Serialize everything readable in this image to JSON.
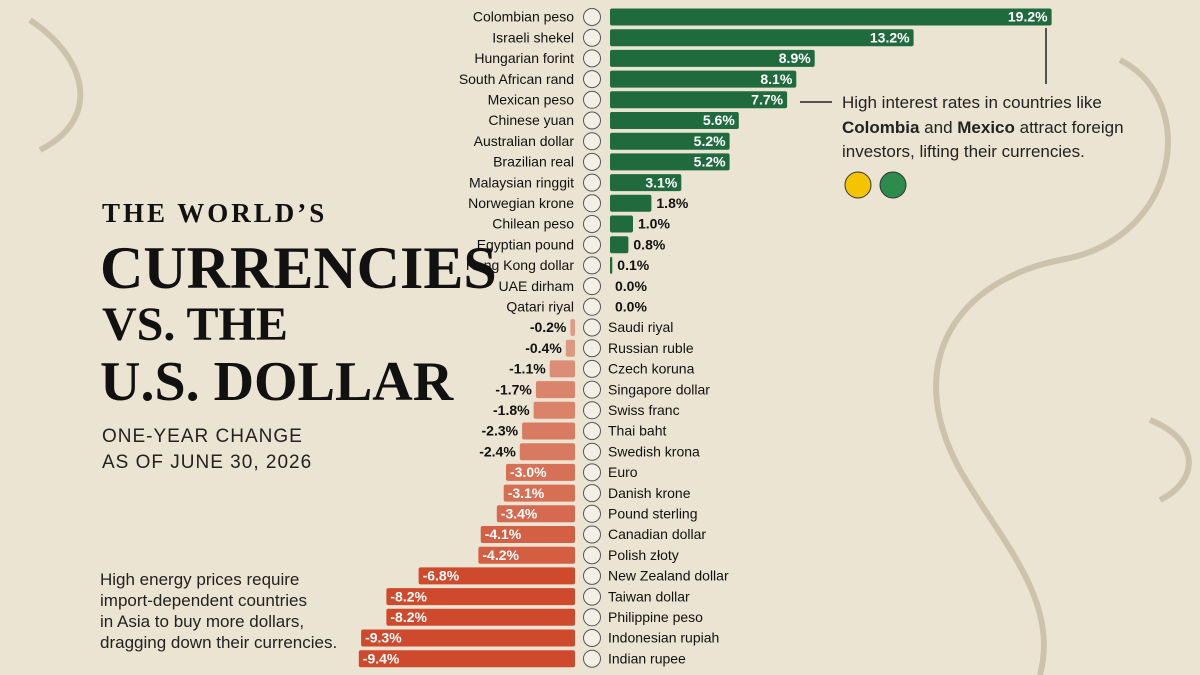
{
  "title_lines": [
    "THE WORLD’S",
    "CURRENCIES",
    "VS. THE",
    "U.S. DOLLAR"
  ],
  "subtitle_lines": [
    "ONE-YEAR CHANGE",
    "AS OF JUNE 30, 2026"
  ],
  "annotation_top": {
    "line1": "High interest rates in countries like",
    "line2": [
      "Colombia",
      " and ",
      "Mexico",
      " attract foreign"
    ],
    "line3": "investors, lifting their currencies."
  },
  "annotation_bottom": [
    "High energy prices require",
    "import-dependent countries",
    "in Asia to buy more dollars,",
    "dragging down their currencies."
  ],
  "chart_data": {
    "type": "bar",
    "orientation": "horizontal",
    "positive_color": "#1f6b3e",
    "negative_color": "#cf4a2c",
    "categories": [
      "Colombian peso",
      "Israeli shekel",
      "Hungarian forint",
      "South African rand",
      "Mexican peso",
      "Chinese yuan",
      "Australian dollar",
      "Brazilian real",
      "Malaysian ringgit",
      "Norwegian krone",
      "Chilean peso",
      "Egyptian pound",
      "Hong Kong dollar",
      "UAE dirham",
      "Qatari riyal",
      "Saudi riyal",
      "Russian ruble",
      "Czech koruna",
      "Singapore dollar",
      "Swiss franc",
      "Thai baht",
      "Swedish krona",
      "Euro",
      "Danish krone",
      "Pound sterling",
      "Canadian dollar",
      "Polish złoty",
      "New Zealand dollar",
      "Taiwan dollar",
      "Philippine peso",
      "Indonesian rupiah",
      "Indian rupee"
    ],
    "values": [
      19.2,
      13.2,
      8.9,
      8.1,
      7.7,
      5.6,
      5.2,
      5.2,
      3.1,
      1.8,
      1.0,
      0.8,
      0.1,
      0.0,
      0.0,
      -0.2,
      -0.4,
      -1.1,
      -1.7,
      -1.8,
      -2.3,
      -2.4,
      -3.0,
      -3.1,
      -3.4,
      -4.1,
      -4.2,
      -6.8,
      -8.2,
      -8.2,
      -9.3,
      -9.4
    ],
    "value_labels": [
      "19.2%",
      "13.2%",
      "8.9%",
      "8.1%",
      "7.7%",
      "5.6%",
      "5.2%",
      "5.2%",
      "3.1%",
      "1.8%",
      "1.0%",
      "0.8%",
      "0.1%",
      "0.0%",
      "0.0%",
      "-0.2%",
      "-0.4%",
      "-1.1%",
      "-1.7%",
      "-1.8%",
      "-2.3%",
      "-2.4%",
      "-3.0%",
      "-3.1%",
      "-3.4%",
      "-4.1%",
      "-4.2%",
      "-6.8%",
      "-8.2%",
      "-8.2%",
      "-9.3%",
      "-9.4%"
    ]
  }
}
